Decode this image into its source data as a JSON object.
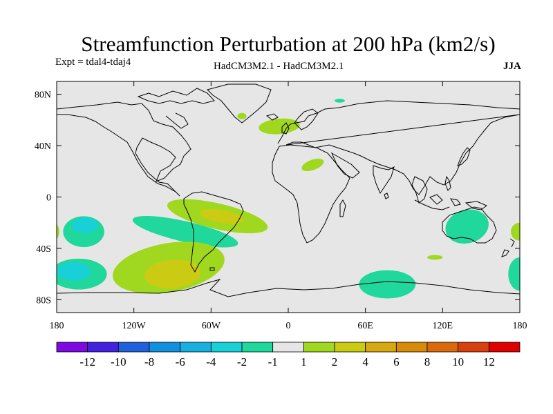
{
  "title": "Streamfunction Perturbation at 200 hPa (km2/s)",
  "subtitle_left": "Expt = tdal4-tdaj4",
  "subtitle_center": "HadCM3M2.1 - HadCM3M2.1",
  "subtitle_right": "JJA",
  "map": {
    "projection": "cylindrical-equidistant",
    "lon_range": [
      -180,
      180
    ],
    "lat_range": [
      -90,
      90
    ],
    "background_color": "#e6e6e6",
    "y_ticks": [
      {
        "value": 80,
        "label": "80N"
      },
      {
        "value": 40,
        "label": "40N"
      },
      {
        "value": 0,
        "label": "0"
      },
      {
        "value": -40,
        "label": "40S"
      },
      {
        "value": -80,
        "label": "80S"
      }
    ],
    "x_ticks": [
      {
        "value": -180,
        "label": "180"
      },
      {
        "value": -120,
        "label": "120W"
      },
      {
        "value": -60,
        "label": "60W"
      },
      {
        "value": 0,
        "label": "0"
      },
      {
        "value": 60,
        "label": "60E"
      },
      {
        "value": 120,
        "label": "120E"
      },
      {
        "value": 180,
        "label": "180"
      }
    ],
    "anomaly_regions": [
      {
        "name": "north-atlantic",
        "sign": "positive",
        "level": "1 to 2",
        "lon": -7,
        "lat": 55,
        "lon_radius": 16,
        "lat_radius": 6,
        "rotation": -5
      },
      {
        "name": "north-africa",
        "sign": "positive",
        "level": "1 to 2",
        "lon": 19,
        "lat": 25,
        "lon_radius": 9,
        "lat_radius": 4,
        "rotation": -20
      },
      {
        "name": "iceland-spot",
        "sign": "positive",
        "level": "1 to 2",
        "lon": -36,
        "lat": 63,
        "lon_radius": 3.5,
        "lat_radius": 2.5,
        "rotation": 0
      },
      {
        "name": "arctic-spot",
        "sign": "negative",
        "level": "-1 to -2",
        "lon": 40,
        "lat": 75,
        "lon_radius": 4,
        "lat_radius": 1.5,
        "rotation": 0
      },
      {
        "name": "south-atlantic-outer",
        "sign": "positive",
        "level": "1 to 2",
        "lon": -55,
        "lat": -15,
        "lon_radius": 40,
        "lat_radius": 10,
        "rotation": 13
      },
      {
        "name": "south-atlantic-inner",
        "sign": "positive",
        "level": "2 to 4",
        "lon": -52,
        "lat": -15,
        "lon_radius": 17,
        "lat_radius": 5,
        "rotation": 10
      },
      {
        "name": "south-pacific-band",
        "sign": "negative",
        "level": "-1 to -2",
        "lon": -80,
        "lat": -27,
        "lon_radius": 42,
        "lat_radius": 8,
        "rotation": 13
      },
      {
        "name": "southern-ocean-outer",
        "sign": "positive",
        "level": "1 to 2",
        "lon": -93,
        "lat": -55,
        "lon_radius": 44,
        "lat_radius": 19,
        "rotation": -10
      },
      {
        "name": "southern-ocean-inner",
        "sign": "positive",
        "level": "2 to 4",
        "lon": -90,
        "lat": -60,
        "lon_radius": 22,
        "lat_radius": 11,
        "rotation": -5
      },
      {
        "name": "central-pacific-outer",
        "sign": "negative",
        "level": "-1 to -2",
        "lon": -159,
        "lat": -27,
        "lon_radius": 16,
        "lat_radius": 12,
        "rotation": 0
      },
      {
        "name": "central-pacific-inner",
        "sign": "negative",
        "level": "-2 to -4",
        "lon": -158,
        "lat": -22,
        "lon_radius": 10,
        "lat_radius": 6,
        "rotation": 0
      },
      {
        "name": "south-pacific-west-outer",
        "sign": "negative",
        "level": "-1 to -2",
        "lon": -163,
        "lat": -60,
        "lon_radius": 22,
        "lat_radius": 12,
        "rotation": 0
      },
      {
        "name": "south-pacific-west-inner",
        "sign": "negative",
        "level": "-2 to -4",
        "lon": -167,
        "lat": -58,
        "lon_radius": 13,
        "lat_radius": 7,
        "rotation": 0
      },
      {
        "name": "dateline-west-edge",
        "sign": "positive",
        "level": "1 to 2",
        "lon": -181,
        "lat": -27,
        "lon_radius": 3,
        "lat_radius": 6,
        "rotation": 0
      },
      {
        "name": "australia",
        "sign": "negative",
        "level": "-1 to -2",
        "lon": 139,
        "lat": -23,
        "lon_radius": 17,
        "lat_radius": 13,
        "rotation": -15
      },
      {
        "name": "indian-ocean-south",
        "sign": "positive",
        "level": "1 to 2",
        "lon": 114,
        "lat": -47,
        "lon_radius": 6,
        "lat_radius": 1.8,
        "rotation": 0
      },
      {
        "name": "antarctic-coast",
        "sign": "negative",
        "level": "-1 to -2",
        "lon": 77,
        "lat": -68,
        "lon_radius": 22,
        "lat_radius": 11,
        "rotation": 0
      },
      {
        "name": "dateline-east-positive",
        "sign": "positive",
        "level": "1 to 2",
        "lon": 180,
        "lat": -27,
        "lon_radius": 7,
        "lat_radius": 7,
        "rotation": 0
      },
      {
        "name": "dateline-east-negative",
        "sign": "negative",
        "level": "-1 to -2",
        "lon": 180,
        "lat": -60,
        "lon_radius": 9,
        "lat_radius": 13,
        "rotation": 0
      }
    ]
  },
  "colorbar": {
    "colors": [
      "#7d0ae0",
      "#4422dd",
      "#2060dd",
      "#1090dd",
      "#18b0e0",
      "#18d0d8",
      "#20d89c",
      "#e6e6e6",
      "#a0d820",
      "#cbcb14",
      "#d8a810",
      "#d88a0a",
      "#d86a0a",
      "#d84010",
      "#e00000"
    ],
    "labels": [
      "-12",
      "-10",
      "-8",
      "-6",
      "-4",
      "-2",
      "-1",
      "1",
      "2",
      "4",
      "6",
      "8",
      "10",
      "12"
    ]
  },
  "colors": {
    "negative_1": "#20d89c",
    "negative_2": "#18d0d8",
    "positive_1": "#a0d820",
    "positive_2": "#cbcb14",
    "land_outline": "#000000",
    "frame": "#000000"
  }
}
